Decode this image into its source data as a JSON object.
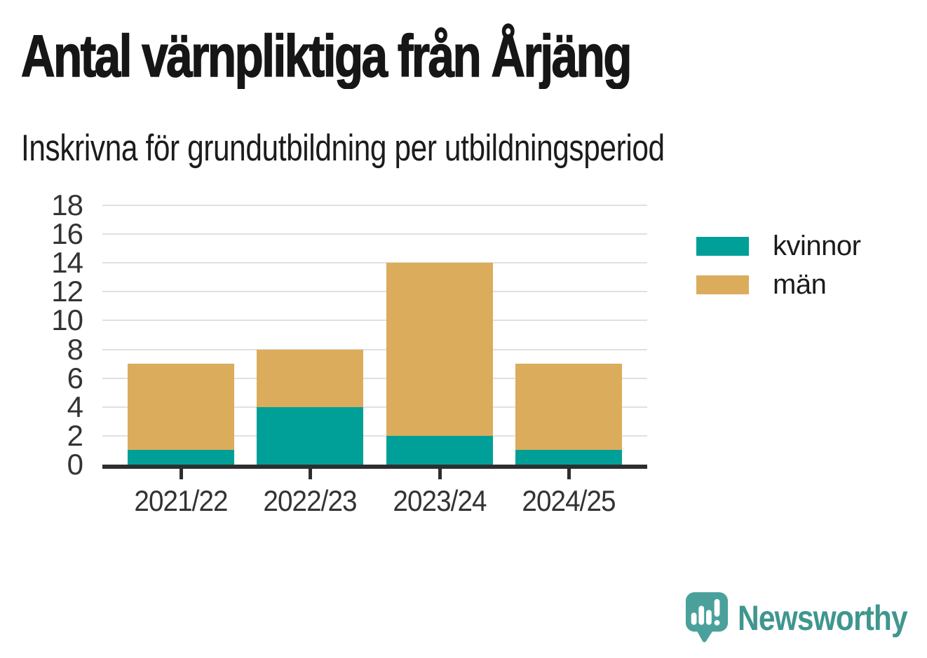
{
  "title": "Antal värnpliktiga från Årjäng",
  "subtitle": "Inskrivna för grundutbildning per utbildningsperiod",
  "legend": {
    "items": [
      {
        "label": "kvinnor",
        "color": "#00a098"
      },
      {
        "label": "män",
        "color": "#dbac5c"
      }
    ]
  },
  "brand": {
    "name": "Newsworthy",
    "icon": "speech-bubble-bar-chart-icon",
    "wordmark_color": "#3f968f",
    "icon_color": "#4aa19b"
  },
  "colors": {
    "background": "#ffffff",
    "title_text": "#161616",
    "axis_text": "#333333",
    "axis_line": "#2e2e2e",
    "gridline": "#e0e0e0"
  },
  "chart_data": {
    "type": "bar",
    "stacked": true,
    "title": "Antal värnpliktiga från Årjäng",
    "subtitle": "Inskrivna för grundutbildning per utbildningsperiod",
    "categories": [
      "2021/22",
      "2022/23",
      "2023/24",
      "2024/25"
    ],
    "series": [
      {
        "name": "kvinnor",
        "color": "#00a098",
        "values": [
          1,
          4,
          2,
          1
        ]
      },
      {
        "name": "män",
        "color": "#dbac5c",
        "values": [
          6,
          4,
          12,
          6
        ]
      }
    ],
    "totals": [
      7,
      8,
      14,
      7
    ],
    "xlabel": "",
    "ylabel": "",
    "ylim": [
      0,
      18
    ],
    "yticks": [
      0,
      2,
      4,
      6,
      8,
      10,
      12,
      14,
      16,
      18
    ],
    "grid": "horizontal",
    "legend_position": "right-top"
  }
}
